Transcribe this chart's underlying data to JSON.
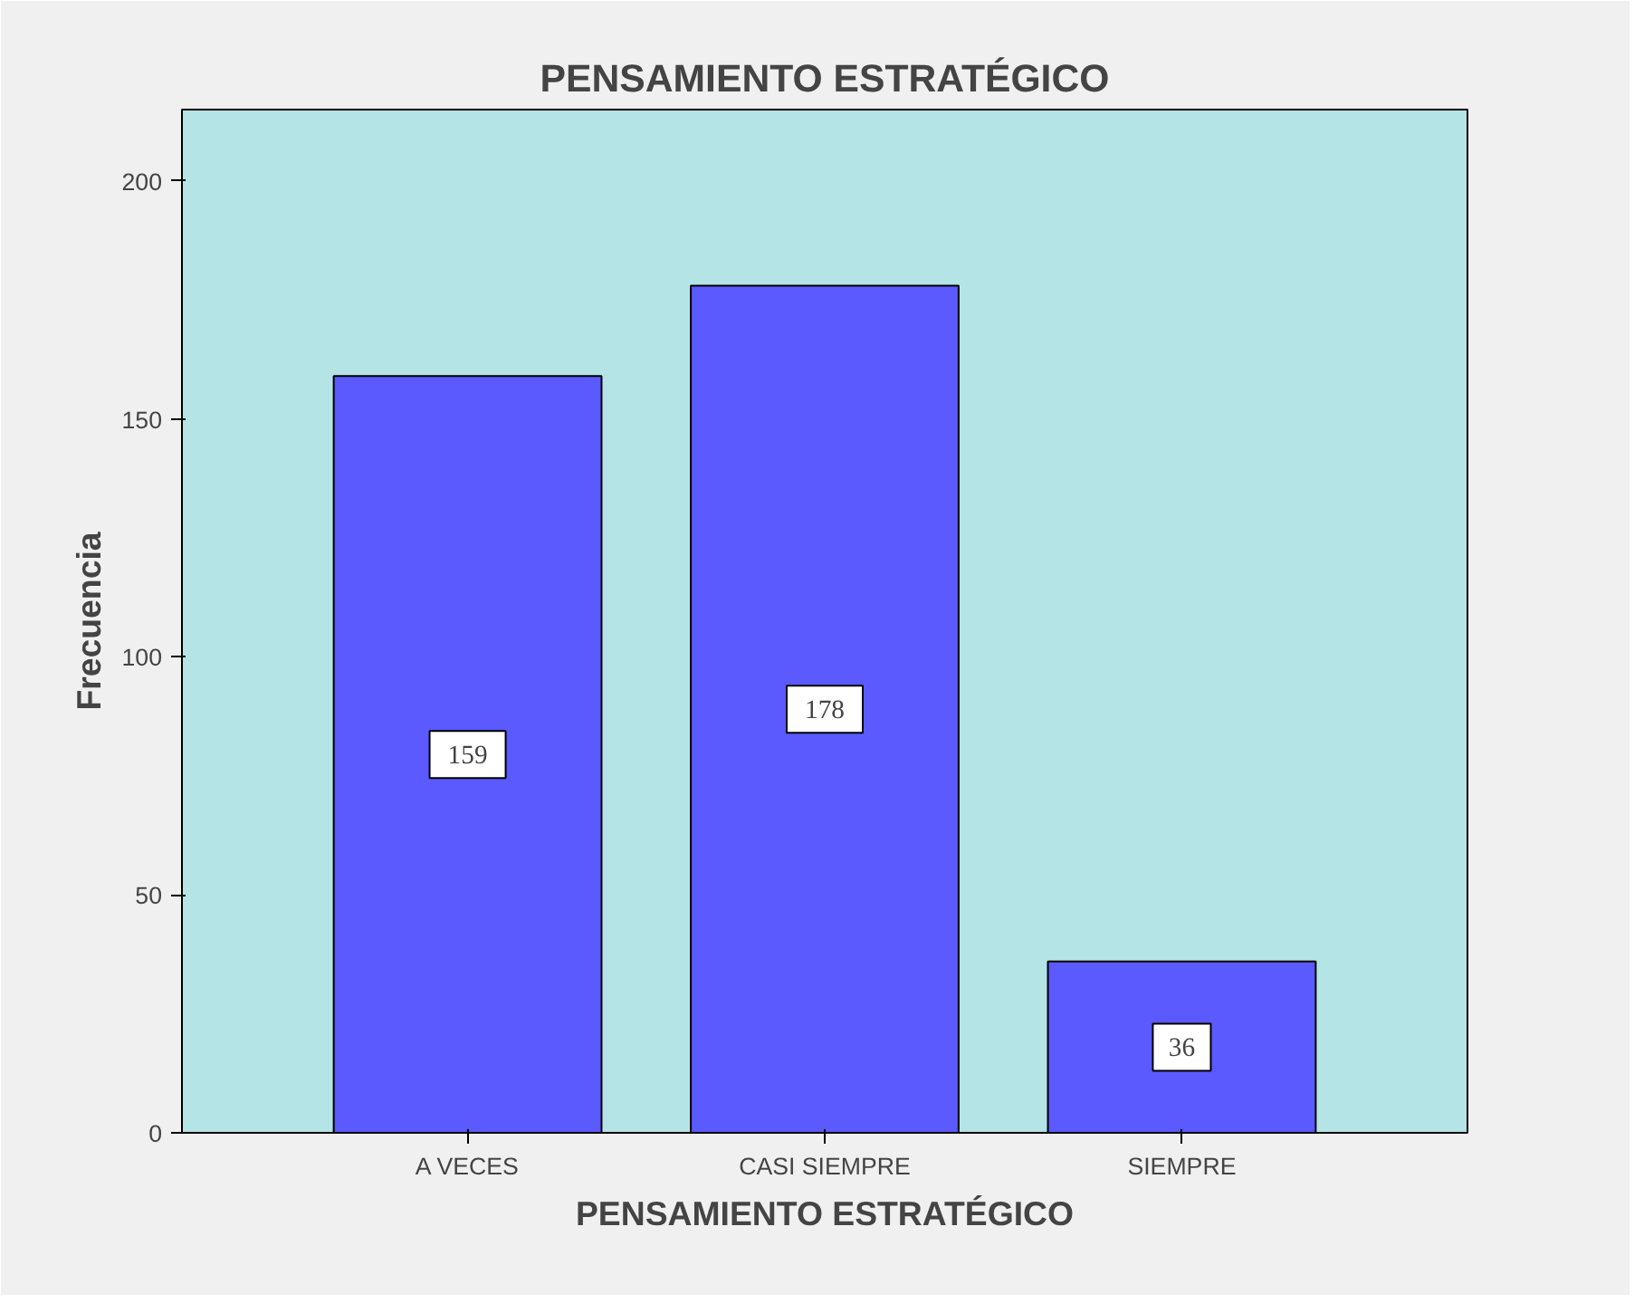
{
  "chart_data": {
    "type": "bar",
    "title": "PENSAMIENTO ESTRATÉGICO",
    "xlabel": "PENSAMIENTO ESTRATÉGICO",
    "ylabel": "Frecuencia",
    "categories": [
      "A VECES",
      "CASI SIEMPRE",
      "SIEMPRE"
    ],
    "values": [
      159,
      178,
      36
    ],
    "color": "#5a5aff",
    "ylim": [
      0,
      215
    ],
    "yticks": [
      0,
      50,
      100,
      150,
      200
    ],
    "grid": false,
    "data_labels": true
  }
}
